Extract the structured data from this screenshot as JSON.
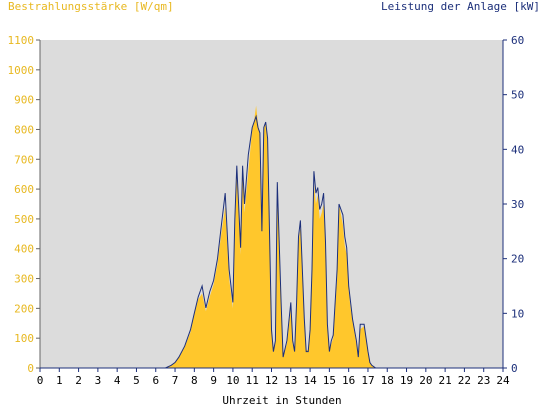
{
  "chart_data": {
    "type": "area",
    "title": "",
    "xlabel": "Uhrzeit in Stunden",
    "ylabel_left": "Bestrahlungsstärke [W/qm]",
    "ylabel_right": "Leistung der Anlage [kW]",
    "xlim": [
      0,
      24
    ],
    "ylim_left": [
      0,
      1100
    ],
    "ylim_right": [
      0,
      60
    ],
    "x_ticks": [
      0,
      1,
      2,
      3,
      4,
      5,
      6,
      7,
      8,
      9,
      10,
      11,
      12,
      13,
      14,
      15,
      16,
      17,
      18,
      19,
      20,
      21,
      22,
      23,
      24
    ],
    "y_ticks_left": [
      0,
      100,
      200,
      300,
      400,
      500,
      600,
      700,
      800,
      900,
      1000,
      1100
    ],
    "y_ticks_right": [
      0,
      10,
      20,
      30,
      40,
      50,
      60
    ],
    "grid": false,
    "colors": {
      "irradiance": "#ffc72c",
      "power": "#1c2f7a",
      "plot_bg": "#dcdcdc",
      "left_axis_text": "#e8b820",
      "right_axis_text": "#1c2f7a"
    },
    "series": [
      {
        "name": "Bestrahlungsstärke",
        "axis": "left",
        "x": [
          0,
          6.5,
          6.8,
          7.0,
          7.2,
          7.5,
          7.8,
          8.0,
          8.2,
          8.4,
          8.6,
          8.8,
          9.0,
          9.2,
          9.4,
          9.6,
          9.8,
          10.0,
          10.1,
          10.2,
          10.4,
          10.5,
          10.6,
          10.8,
          11.0,
          11.1,
          11.2,
          11.3,
          11.4,
          11.5,
          11.6,
          11.7,
          11.8,
          12.0,
          12.1,
          12.2,
          12.3,
          12.5,
          12.6,
          12.8,
          13.0,
          13.1,
          13.2,
          13.3,
          13.4,
          13.5,
          13.7,
          13.8,
          13.9,
          14.0,
          14.1,
          14.2,
          14.3,
          14.4,
          14.5,
          14.6,
          14.7,
          14.8,
          14.9,
          15.0,
          15.1,
          15.2,
          15.4,
          15.5,
          15.7,
          15.8,
          15.9,
          16.0,
          16.1,
          16.2,
          16.4,
          16.5,
          16.6,
          16.8,
          17.0,
          17.1,
          17.2,
          17.4,
          17.5,
          17.6,
          17.7,
          17.8,
          17.9,
          18.0,
          18.1,
          18.2,
          18.3,
          18.5,
          24
        ],
        "y": [
          0,
          0,
          10,
          20,
          35,
          70,
          120,
          180,
          230,
          250,
          190,
          240,
          280,
          350,
          450,
          540,
          300,
          200,
          450,
          650,
          380,
          650,
          520,
          660,
          800,
          830,
          880,
          820,
          780,
          450,
          800,
          820,
          750,
          120,
          60,
          90,
          600,
          200,
          40,
          80,
          200,
          80,
          60,
          200,
          420,
          470,
          150,
          60,
          60,
          120,
          300,
          620,
          550,
          580,
          500,
          520,
          550,
          400,
          130,
          60,
          80,
          100,
          300,
          550,
          480,
          410,
          380,
          260,
          200,
          160,
          80,
          40,
          130,
          140,
          50,
          20,
          10,
          0,
          0,
          0,
          0,
          0,
          0,
          0,
          0,
          0,
          0,
          0,
          0
        ],
        "note_y_scale": "W/qm"
      },
      {
        "name": "Leistung",
        "axis": "right",
        "x": [
          0,
          6.5,
          6.8,
          7.0,
          7.2,
          7.5,
          7.8,
          8.0,
          8.2,
          8.4,
          8.6,
          8.8,
          9.0,
          9.2,
          9.4,
          9.6,
          9.8,
          10.0,
          10.1,
          10.2,
          10.4,
          10.5,
          10.6,
          10.8,
          11.0,
          11.1,
          11.2,
          11.3,
          11.4,
          11.5,
          11.6,
          11.7,
          11.8,
          12.0,
          12.1,
          12.2,
          12.3,
          12.5,
          12.6,
          12.8,
          13.0,
          13.1,
          13.2,
          13.3,
          13.4,
          13.5,
          13.7,
          13.8,
          13.9,
          14.0,
          14.1,
          14.2,
          14.3,
          14.4,
          14.5,
          14.6,
          14.7,
          14.8,
          14.9,
          15.0,
          15.1,
          15.2,
          15.4,
          15.5,
          15.7,
          15.8,
          15.9,
          16.0,
          16.1,
          16.2,
          16.4,
          16.5,
          16.6,
          16.8,
          17.0,
          17.1,
          17.2,
          17.4,
          17.5,
          17.6,
          17.7,
          17.8,
          17.9,
          18.0,
          18.1,
          18.2,
          18.3,
          18.5,
          24
        ],
        "y": [
          0,
          0,
          0.5,
          1,
          2,
          4,
          7,
          10,
          13,
          15,
          11,
          14,
          16,
          20,
          26,
          32,
          18,
          12,
          27,
          37,
          22,
          37,
          30,
          39,
          44,
          45,
          46,
          44,
          43,
          25,
          44,
          45,
          42,
          7,
          3,
          5,
          34,
          12,
          2,
          5,
          12,
          5,
          3,
          12,
          24,
          27,
          9,
          3,
          3,
          7,
          18,
          36,
          32,
          33,
          29,
          30,
          32,
          23,
          8,
          3,
          5,
          6,
          18,
          30,
          28,
          24,
          22,
          15,
          12,
          9,
          5,
          2,
          8,
          8,
          3,
          1,
          0.5,
          0,
          0,
          0,
          0,
          0,
          0,
          0,
          0,
          0,
          0,
          0,
          0
        ]
      }
    ]
  }
}
